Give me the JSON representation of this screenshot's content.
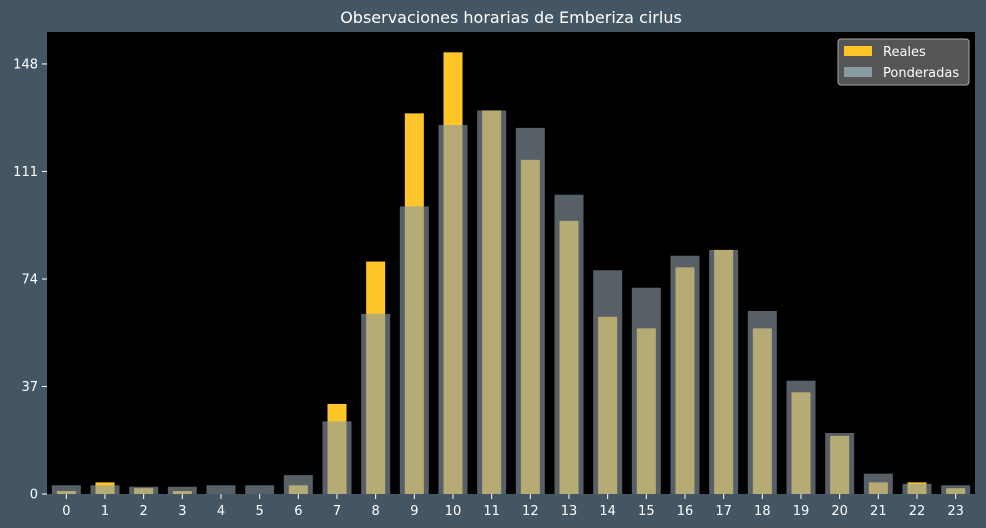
{
  "chart_data": {
    "type": "bar",
    "title": "Observaciones horarias de Emberiza cirlus",
    "xlabel": "",
    "ylabel": "",
    "categories": [
      "0",
      "1",
      "2",
      "3",
      "4",
      "5",
      "6",
      "7",
      "8",
      "9",
      "10",
      "11",
      "12",
      "13",
      "14",
      "15",
      "16",
      "17",
      "18",
      "19",
      "20",
      "21",
      "22",
      "23"
    ],
    "series": [
      {
        "name": "Reales",
        "color": "#ffc629",
        "values": [
          1,
          4,
          2,
          1,
          0,
          0,
          3,
          31,
          80,
          131,
          152,
          132,
          115,
          94,
          61,
          57,
          78,
          84,
          57,
          35,
          20,
          4,
          4,
          2
        ]
      },
      {
        "name": "Ponderadas",
        "color": "#8a9ba4",
        "values": [
          3,
          3,
          2.5,
          2.5,
          3,
          3,
          6.5,
          25,
          62,
          99,
          127,
          132,
          126,
          103,
          77,
          71,
          82,
          84,
          63,
          39,
          21,
          7,
          3.5,
          3
        ]
      }
    ],
    "yticks": [
      0,
      37,
      74,
      111,
      148
    ],
    "ylim": [
      0,
      159
    ],
    "grid": false,
    "legend_position": "top-right",
    "background": "#000000",
    "figure_background": "#445663"
  }
}
